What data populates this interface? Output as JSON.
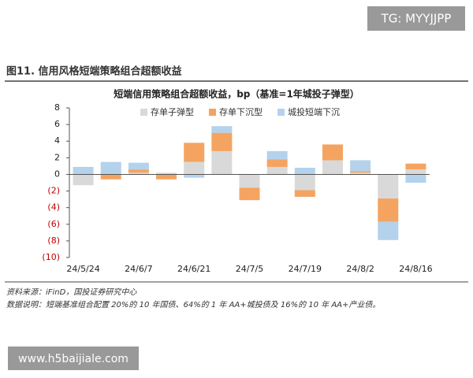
{
  "watermark_top": "TG: MYYJJPP",
  "figure_title": "图11. 信用风格短端策略组合超额收益",
  "chart_data": {
    "type": "stacked_bar",
    "title": "短端信用策略组合超额收益，bp（基准=1年城投子弹型）",
    "categories": [
      "24/5/24",
      null,
      "24/6/7",
      null,
      "24/6/21",
      null,
      "24/7/5",
      null,
      "24/7/19",
      null,
      "24/8/2",
      null,
      "24/8/16"
    ],
    "series": [
      {
        "name": "存单子弹型",
        "color": "#d9d9d9",
        "values": [
          -1.3,
          0,
          0.2,
          0.2,
          1.5,
          2.8,
          -1.6,
          0.9,
          -1.9,
          1.7,
          0.2,
          -2.9,
          0.6
        ]
      },
      {
        "name": "存单下沉型",
        "color": "#f4a460",
        "values": [
          0,
          -0.6,
          0.4,
          -0.6,
          2.3,
          2.2,
          -1.5,
          0.9,
          -0.8,
          1.9,
          0.2,
          -2.8,
          0.7
        ]
      },
      {
        "name": "城投短端下沉",
        "color": "#b4d2ec",
        "values": [
          0.9,
          1.5,
          0.8,
          0,
          -0.4,
          0.8,
          0,
          1.0,
          0.8,
          0,
          1.3,
          -2.2,
          -1.0
        ]
      }
    ],
    "ylim": [
      -10,
      8
    ],
    "yticks": [
      8,
      6,
      4,
      2,
      0,
      {
        "value": -2,
        "label": "(2)"
      },
      {
        "value": -4,
        "label": "(4)"
      },
      {
        "value": -6,
        "label": "(6)"
      },
      {
        "value": -8,
        "label": "(8)"
      },
      {
        "value": -10,
        "label": "(10)"
      }
    ],
    "negative_tick_color": "#c00000",
    "legend": "top"
  },
  "source": "资料来源：iFinD，国投证券研究中心",
  "note": "数据说明：短端基准组合配置 20%的 10 年国债、64%的 1 年 AA+城投债及 16%的 10 年 AA+产业债。",
  "watermark_bottom": "www.h5baijiale.com"
}
